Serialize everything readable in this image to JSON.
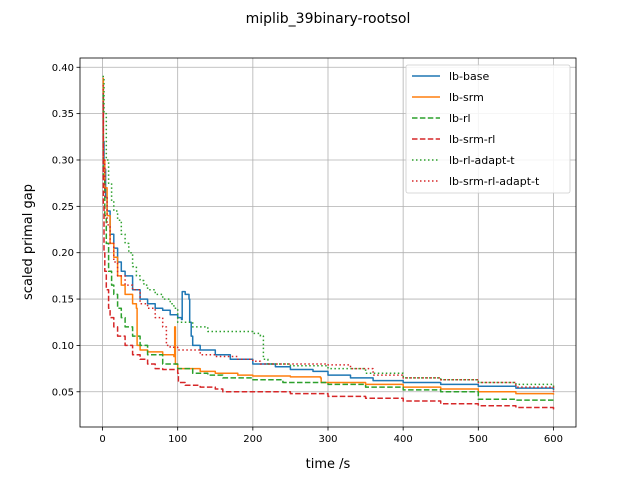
{
  "chart_data": {
    "type": "line",
    "title": "miplib_39binary-rootsol",
    "xlabel": "time /s",
    "ylabel": "scaled primal gap",
    "xlim": [
      -30,
      630
    ],
    "ylim": [
      0.012,
      0.41
    ],
    "xticks": [
      0,
      100,
      200,
      300,
      400,
      500,
      600
    ],
    "yticks": [
      0.05,
      0.1,
      0.15,
      0.2,
      0.25,
      0.3,
      0.35,
      0.4
    ],
    "ytick_labels": [
      "0.05",
      "0.10",
      "0.15",
      "0.20",
      "0.25",
      "0.30",
      "0.35",
      "0.40"
    ],
    "grid": true,
    "legend_position": "top-right",
    "series": [
      {
        "name": "lb-base",
        "color": "#1f77b4",
        "style": "solid",
        "points": [
          [
            0,
            0.385
          ],
          [
            1,
            0.32
          ],
          [
            2,
            0.29
          ],
          [
            4,
            0.26
          ],
          [
            6,
            0.245
          ],
          [
            10,
            0.22
          ],
          [
            15,
            0.205
          ],
          [
            20,
            0.19
          ],
          [
            25,
            0.18
          ],
          [
            30,
            0.175
          ],
          [
            40,
            0.16
          ],
          [
            50,
            0.15
          ],
          [
            60,
            0.145
          ],
          [
            70,
            0.14
          ],
          [
            80,
            0.138
          ],
          [
            90,
            0.133
          ],
          [
            100,
            0.13
          ],
          [
            105,
            0.128
          ],
          [
            106,
            0.158
          ],
          [
            110,
            0.155
          ],
          [
            115,
            0.15
          ],
          [
            116,
            0.125
          ],
          [
            118,
            0.11
          ],
          [
            120,
            0.1
          ],
          [
            130,
            0.095
          ],
          [
            150,
            0.09
          ],
          [
            170,
            0.085
          ],
          [
            200,
            0.08
          ],
          [
            230,
            0.077
          ],
          [
            250,
            0.074
          ],
          [
            280,
            0.072
          ],
          [
            300,
            0.068
          ],
          [
            330,
            0.065
          ],
          [
            360,
            0.062
          ],
          [
            400,
            0.06
          ],
          [
            450,
            0.058
          ],
          [
            500,
            0.056
          ],
          [
            550,
            0.054
          ],
          [
            600,
            0.052
          ]
        ]
      },
      {
        "name": "lb-srm",
        "color": "#ff7f0e",
        "style": "solid",
        "points": [
          [
            0,
            0.388
          ],
          [
            1,
            0.3
          ],
          [
            3,
            0.27
          ],
          [
            6,
            0.24
          ],
          [
            10,
            0.21
          ],
          [
            15,
            0.195
          ],
          [
            20,
            0.175
          ],
          [
            25,
            0.165
          ],
          [
            30,
            0.155
          ],
          [
            40,
            0.145
          ],
          [
            45,
            0.14
          ],
          [
            46,
            0.1
          ],
          [
            50,
            0.095
          ],
          [
            60,
            0.093
          ],
          [
            80,
            0.09
          ],
          [
            95,
            0.088
          ],
          [
            96,
            0.12
          ],
          [
            97,
            0.08
          ],
          [
            100,
            0.075
          ],
          [
            130,
            0.072
          ],
          [
            150,
            0.07
          ],
          [
            180,
            0.068
          ],
          [
            200,
            0.067
          ],
          [
            250,
            0.066
          ],
          [
            290,
            0.065
          ],
          [
            291,
            0.06
          ],
          [
            300,
            0.06
          ],
          [
            350,
            0.058
          ],
          [
            400,
            0.055
          ],
          [
            450,
            0.053
          ],
          [
            500,
            0.05
          ],
          [
            550,
            0.048
          ],
          [
            600,
            0.047
          ]
        ]
      },
      {
        "name": "lb-rl",
        "color": "#2ca02c",
        "style": "dashed",
        "points": [
          [
            0,
            0.37
          ],
          [
            1,
            0.28
          ],
          [
            3,
            0.24
          ],
          [
            5,
            0.21
          ],
          [
            8,
            0.18
          ],
          [
            12,
            0.165
          ],
          [
            15,
            0.155
          ],
          [
            20,
            0.14
          ],
          [
            25,
            0.13
          ],
          [
            30,
            0.12
          ],
          [
            40,
            0.11
          ],
          [
            50,
            0.1
          ],
          [
            60,
            0.09
          ],
          [
            80,
            0.08
          ],
          [
            100,
            0.075
          ],
          [
            120,
            0.07
          ],
          [
            140,
            0.068
          ],
          [
            160,
            0.065
          ],
          [
            200,
            0.063
          ],
          [
            240,
            0.06
          ],
          [
            300,
            0.058
          ],
          [
            350,
            0.055
          ],
          [
            400,
            0.052
          ],
          [
            450,
            0.05
          ],
          [
            500,
            0.042
          ],
          [
            550,
            0.041
          ],
          [
            600,
            0.04
          ]
        ]
      },
      {
        "name": "lb-srm-rl",
        "color": "#d62728",
        "style": "dashed",
        "points": [
          [
            0,
            0.36
          ],
          [
            1,
            0.25
          ],
          [
            2,
            0.2
          ],
          [
            3,
            0.18
          ],
          [
            5,
            0.16
          ],
          [
            8,
            0.14
          ],
          [
            10,
            0.13
          ],
          [
            15,
            0.12
          ],
          [
            20,
            0.11
          ],
          [
            30,
            0.1
          ],
          [
            40,
            0.09
          ],
          [
            50,
            0.085
          ],
          [
            60,
            0.08
          ],
          [
            70,
            0.075
          ],
          [
            80,
            0.074
          ],
          [
            100,
            0.07
          ],
          [
            101,
            0.06
          ],
          [
            110,
            0.057
          ],
          [
            130,
            0.055
          ],
          [
            150,
            0.053
          ],
          [
            160,
            0.05
          ],
          [
            200,
            0.05
          ],
          [
            250,
            0.048
          ],
          [
            300,
            0.045
          ],
          [
            350,
            0.043
          ],
          [
            400,
            0.04
          ],
          [
            450,
            0.037
          ],
          [
            500,
            0.035
          ],
          [
            550,
            0.033
          ],
          [
            600,
            0.031
          ]
        ]
      },
      {
        "name": "lb-rl-adapt-t",
        "color": "#2ca02c",
        "style": "dotted",
        "points": [
          [
            0,
            0.39
          ],
          [
            2,
            0.35
          ],
          [
            5,
            0.3
          ],
          [
            8,
            0.275
          ],
          [
            12,
            0.255
          ],
          [
            15,
            0.245
          ],
          [
            20,
            0.235
          ],
          [
            25,
            0.22
          ],
          [
            30,
            0.21
          ],
          [
            35,
            0.2
          ],
          [
            40,
            0.185
          ],
          [
            45,
            0.175
          ],
          [
            50,
            0.17
          ],
          [
            55,
            0.165
          ],
          [
            60,
            0.16
          ],
          [
            70,
            0.155
          ],
          [
            80,
            0.15
          ],
          [
            90,
            0.145
          ],
          [
            95,
            0.14
          ],
          [
            100,
            0.125
          ],
          [
            120,
            0.12
          ],
          [
            140,
            0.115
          ],
          [
            160,
            0.115
          ],
          [
            200,
            0.113
          ],
          [
            210,
            0.11
          ],
          [
            214,
            0.085
          ],
          [
            220,
            0.08
          ],
          [
            250,
            0.078
          ],
          [
            300,
            0.075
          ],
          [
            350,
            0.07
          ],
          [
            400,
            0.065
          ],
          [
            450,
            0.063
          ],
          [
            500,
            0.06
          ],
          [
            550,
            0.058
          ],
          [
            600,
            0.052
          ]
        ]
      },
      {
        "name": "lb-srm-rl-adapt-t",
        "color": "#d62728",
        "style": "dotted",
        "points": [
          [
            0,
            0.38
          ],
          [
            1,
            0.3
          ],
          [
            3,
            0.26
          ],
          [
            6,
            0.23
          ],
          [
            10,
            0.21
          ],
          [
            15,
            0.19
          ],
          [
            20,
            0.175
          ],
          [
            30,
            0.165
          ],
          [
            40,
            0.16
          ],
          [
            50,
            0.145
          ],
          [
            60,
            0.14
          ],
          [
            70,
            0.13
          ],
          [
            80,
            0.12
          ],
          [
            85,
            0.1
          ],
          [
            90,
            0.098
          ],
          [
            100,
            0.095
          ],
          [
            130,
            0.09
          ],
          [
            150,
            0.088
          ],
          [
            180,
            0.085
          ],
          [
            200,
            0.083
          ],
          [
            210,
            0.08
          ],
          [
            250,
            0.08
          ],
          [
            300,
            0.079
          ],
          [
            330,
            0.075
          ],
          [
            360,
            0.068
          ],
          [
            400,
            0.065
          ],
          [
            450,
            0.063
          ],
          [
            500,
            0.06
          ],
          [
            550,
            0.055
          ],
          [
            600,
            0.05
          ]
        ]
      }
    ]
  }
}
